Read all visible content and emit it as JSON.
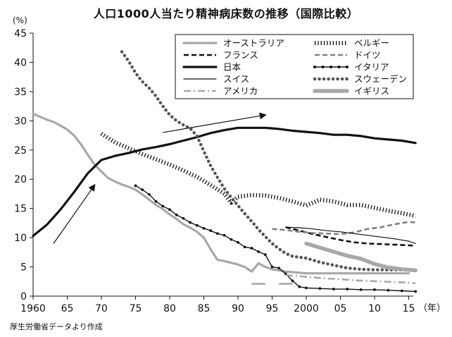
{
  "title": "人口1000人当たり精神病床数の推移（国際比較）",
  "y_unit": "(%)",
  "x_unit": "（年）",
  "source": "厚生労働省データより作成",
  "chart_data": {
    "type": "line",
    "ylim": [
      0,
      45
    ],
    "xlim": [
      1960,
      2017
    ],
    "y_ticks": [
      0,
      5,
      10,
      15,
      20,
      25,
      30,
      35,
      40,
      45
    ],
    "x_ticks": [
      {
        "year": 1960,
        "label": "1960"
      },
      {
        "year": 1965,
        "label": "65"
      },
      {
        "year": 1970,
        "label": "70"
      },
      {
        "year": 1975,
        "label": "75"
      },
      {
        "year": 1980,
        "label": "80"
      },
      {
        "year": 1985,
        "label": "85"
      },
      {
        "year": 1990,
        "label": "90"
      },
      {
        "year": 1995,
        "label": "95"
      },
      {
        "year": 2000,
        "label": "2000"
      },
      {
        "year": 2005,
        "label": "05"
      },
      {
        "year": 2010,
        "label": "10"
      },
      {
        "year": 2015,
        "label": "15"
      }
    ],
    "grid": false,
    "legend_position": "top-right",
    "series": [
      {
        "name": "オーストラリア",
        "color": "#a8a8a8",
        "style": "solid-thick",
        "points": [
          [
            1960,
            31.2
          ],
          [
            1961,
            30.7
          ],
          [
            1962,
            30.2
          ],
          [
            1963,
            29.8
          ],
          [
            1964,
            29.2
          ],
          [
            1965,
            28.5
          ],
          [
            1966,
            27.5
          ],
          [
            1967,
            26
          ],
          [
            1968,
            24.2
          ],
          [
            1969,
            22.5
          ],
          [
            1970,
            21.3
          ],
          [
            1971,
            20.2
          ],
          [
            1972,
            19.6
          ],
          [
            1973,
            19.1
          ],
          [
            1974,
            18.7
          ],
          [
            1975,
            18.2
          ],
          [
            1976,
            17.4
          ],
          [
            1977,
            16.5
          ],
          [
            1978,
            15.6
          ],
          [
            1979,
            14.9
          ],
          [
            1980,
            14
          ],
          [
            1981,
            13.2
          ],
          [
            1982,
            12.3
          ],
          [
            1983,
            11.7
          ],
          [
            1984,
            11
          ],
          [
            1985,
            10
          ],
          [
            1986,
            8
          ],
          [
            1987,
            6.2
          ],
          [
            1988,
            6
          ],
          [
            1989,
            5.7
          ],
          [
            1990,
            5.4
          ],
          [
            1991,
            5
          ],
          [
            1992,
            4.2
          ],
          [
            1993,
            5.6
          ],
          [
            1994,
            5
          ],
          [
            1995,
            4.6
          ],
          [
            1996,
            4.4
          ],
          [
            1997,
            4.2
          ],
          [
            1998,
            4.1
          ],
          [
            1999,
            4
          ],
          [
            2000,
            3.9
          ],
          [
            2002,
            3.9
          ],
          [
            2004,
            3.9
          ],
          [
            2006,
            3.9
          ],
          [
            2008,
            3.9
          ],
          [
            2010,
            3.9
          ],
          [
            2012,
            3.9
          ],
          [
            2015,
            3.9
          ]
        ]
      },
      {
        "name": "ベルギー",
        "color": "#111111",
        "style": "vertical-ticks",
        "points": [
          [
            1970,
            27.8
          ],
          [
            1972,
            26.3
          ],
          [
            1974,
            25.3
          ],
          [
            1976,
            24.3
          ],
          [
            1978,
            23.4
          ],
          [
            1980,
            22.5
          ],
          [
            1982,
            21.5
          ],
          [
            1984,
            20.4
          ],
          [
            1986,
            19
          ],
          [
            1988,
            17.5
          ],
          [
            1989,
            16
          ],
          [
            1990,
            17
          ],
          [
            1992,
            17.3
          ],
          [
            1994,
            17.2
          ],
          [
            1996,
            16.8
          ],
          [
            1998,
            16.2
          ],
          [
            2000,
            15.5
          ],
          [
            2002,
            16.5
          ],
          [
            2004,
            16.2
          ],
          [
            2006,
            15.6
          ],
          [
            2008,
            15.6
          ],
          [
            2010,
            15.1
          ],
          [
            2012,
            14.6
          ],
          [
            2014,
            14.2
          ],
          [
            2016,
            13.7
          ]
        ]
      },
      {
        "name": "フランス",
        "color": "#111111",
        "style": "dashed",
        "points": [
          [
            1997,
            11.8
          ],
          [
            1999,
            11.2
          ],
          [
            2001,
            10.6
          ],
          [
            2003,
            10.1
          ],
          [
            2005,
            9.6
          ],
          [
            2007,
            9.2
          ],
          [
            2009,
            9
          ],
          [
            2011,
            8.9
          ],
          [
            2013,
            8.8
          ],
          [
            2015,
            8.7
          ],
          [
            2016,
            8.6
          ]
        ]
      },
      {
        "name": "ドイツ",
        "color": "#808080",
        "style": "dashed",
        "points": [
          [
            1995,
            11.5
          ],
          [
            1997,
            11.3
          ],
          [
            1999,
            11
          ],
          [
            2001,
            10.8
          ],
          [
            2003,
            10.7
          ],
          [
            2005,
            10.6
          ],
          [
            2007,
            10.9
          ],
          [
            2009,
            11.5
          ],
          [
            2011,
            11.8
          ],
          [
            2013,
            12.3
          ],
          [
            2015,
            12.7
          ],
          [
            2016,
            12.6
          ]
        ]
      },
      {
        "name": "日本",
        "color": "#111111",
        "style": "solid-thick",
        "points": [
          [
            1960,
            10.3
          ],
          [
            1962,
            12.2
          ],
          [
            1964,
            14.8
          ],
          [
            1966,
            17.8
          ],
          [
            1968,
            21
          ],
          [
            1970,
            23.3
          ],
          [
            1972,
            24
          ],
          [
            1974,
            24.5
          ],
          [
            1976,
            25.1
          ],
          [
            1978,
            25.5
          ],
          [
            1980,
            26
          ],
          [
            1982,
            26.6
          ],
          [
            1984,
            27.2
          ],
          [
            1986,
            27.9
          ],
          [
            1988,
            28.4
          ],
          [
            1990,
            28.8
          ],
          [
            1992,
            28.8
          ],
          [
            1994,
            28.8
          ],
          [
            1996,
            28.6
          ],
          [
            1998,
            28.3
          ],
          [
            2000,
            28.1
          ],
          [
            2002,
            27.9
          ],
          [
            2004,
            27.6
          ],
          [
            2006,
            27.6
          ],
          [
            2008,
            27.4
          ],
          [
            2010,
            27
          ],
          [
            2012,
            26.8
          ],
          [
            2014,
            26.6
          ],
          [
            2016,
            26.2
          ]
        ]
      },
      {
        "name": "イタリア",
        "color": "#111111",
        "style": "dotted-markers",
        "points": [
          [
            1975,
            18.9
          ],
          [
            1976,
            18.2
          ],
          [
            1977,
            17.4
          ],
          [
            1978,
            16.2
          ],
          [
            1979,
            15.4
          ],
          [
            1980,
            14.8
          ],
          [
            1981,
            13.9
          ],
          [
            1982,
            13.3
          ],
          [
            1983,
            12.6
          ],
          [
            1984,
            12.1
          ],
          [
            1985,
            11.6
          ],
          [
            1986,
            11.2
          ],
          [
            1987,
            10.7
          ],
          [
            1988,
            10.4
          ],
          [
            1989,
            9.7
          ],
          [
            1990,
            9.2
          ],
          [
            1991,
            8.4
          ],
          [
            1992,
            8.2
          ],
          [
            1993,
            7.6
          ],
          [
            1994,
            7.1
          ],
          [
            1995,
            5
          ],
          [
            1996,
            4.8
          ],
          [
            1997,
            3.8
          ],
          [
            1998,
            2.6
          ],
          [
            1999,
            1.6
          ],
          [
            2000,
            1.4
          ],
          [
            2002,
            1.3
          ],
          [
            2004,
            1.2
          ],
          [
            2006,
            1.2
          ],
          [
            2008,
            1.1
          ],
          [
            2010,
            1.1
          ],
          [
            2012,
            1
          ],
          [
            2014,
            0.9
          ],
          [
            2016,
            0.8
          ]
        ]
      },
      {
        "name": "スイス",
        "color": "#111111",
        "style": "solid-thin",
        "points": [
          [
            1997,
            11.8
          ],
          [
            1999,
            11.7
          ],
          [
            2001,
            11.5
          ],
          [
            2003,
            11.2
          ],
          [
            2005,
            11
          ],
          [
            2007,
            10.7
          ],
          [
            2009,
            10.4
          ],
          [
            2011,
            10.1
          ],
          [
            2013,
            9.8
          ],
          [
            2015,
            9.4
          ],
          [
            2016,
            9
          ]
        ]
      },
      {
        "name": "スウェーデン",
        "color": "#555555",
        "style": "dotted-thick",
        "points": [
          [
            1973,
            41.8
          ],
          [
            1974,
            40.2
          ],
          [
            1975,
            38.2
          ],
          [
            1976,
            36.7
          ],
          [
            1977,
            35.6
          ],
          [
            1978,
            34.2
          ],
          [
            1979,
            32.5
          ],
          [
            1980,
            31
          ],
          [
            1981,
            30
          ],
          [
            1982,
            29.3
          ],
          [
            1983,
            28.7
          ],
          [
            1984,
            27.4
          ],
          [
            1985,
            24.8
          ],
          [
            1986,
            22.3
          ],
          [
            1987,
            20.3
          ],
          [
            1988,
            18.4
          ],
          [
            1989,
            16.9
          ],
          [
            1990,
            15.5
          ],
          [
            1991,
            14.1
          ],
          [
            1992,
            12.8
          ],
          [
            1993,
            11.4
          ],
          [
            1994,
            10.2
          ],
          [
            1995,
            9
          ],
          [
            1996,
            8.1
          ],
          [
            1997,
            7.3
          ],
          [
            1998,
            6.8
          ],
          [
            2000,
            6.5
          ],
          [
            2002,
            5.8
          ],
          [
            2004,
            5.3
          ],
          [
            2006,
            4.8
          ],
          [
            2008,
            4.6
          ],
          [
            2010,
            4.5
          ],
          [
            2012,
            4.5
          ],
          [
            2014,
            4.5
          ],
          [
            2016,
            4.4
          ]
        ]
      },
      {
        "name": "アメリカ",
        "color": "#a8a8a8",
        "style": "dash-dot",
        "points": [
          [
            1997,
            3.6
          ],
          [
            1999,
            3.4
          ],
          [
            2001,
            3.2
          ],
          [
            2003,
            3
          ],
          [
            2005,
            2.9
          ],
          [
            2007,
            2.7
          ],
          [
            2009,
            2.6
          ],
          [
            2011,
            2.5
          ],
          [
            2013,
            2.4
          ],
          [
            2015,
            2.3
          ],
          [
            2016,
            2.2
          ]
        ]
      },
      {
        "name": "イギリス",
        "color": "#a8a8a8",
        "style": "solid-very-thick",
        "points": [
          [
            2000,
            9
          ],
          [
            2002,
            8.3
          ],
          [
            2004,
            7.6
          ],
          [
            2006,
            6.9
          ],
          [
            2008,
            6.4
          ],
          [
            2010,
            5.5
          ],
          [
            2012,
            4.9
          ],
          [
            2014,
            4.6
          ],
          [
            2016,
            4.4
          ]
        ]
      }
    ],
    "extra_marks": {
      "color": "#a8a8a8",
      "short_dashes": [
        [
          [
            1992,
            2.1
          ],
          [
            1994,
            2.1
          ]
        ],
        [
          [
            1996,
            2.1
          ],
          [
            1998,
            2.1
          ]
        ]
      ]
    },
    "annotations": {
      "arrows": [
        {
          "from": [
            1963,
            9
          ],
          "to": [
            1969,
            19
          ]
        },
        {
          "from": [
            1979,
            28
          ],
          "to": [
            1994,
            31
          ]
        }
      ]
    }
  }
}
